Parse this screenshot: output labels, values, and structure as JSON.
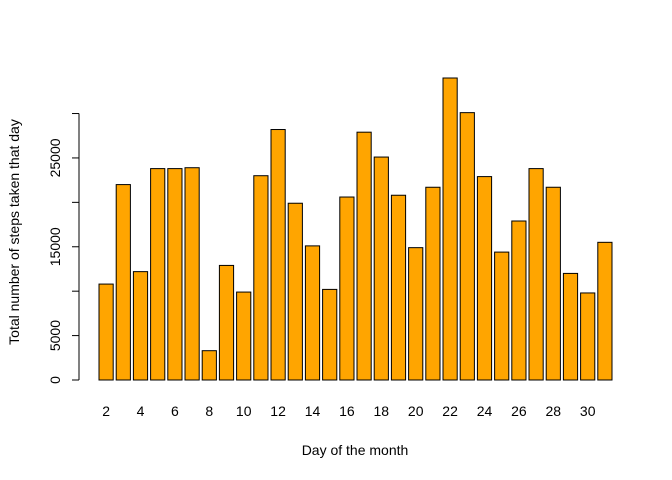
{
  "chart_data": {
    "type": "bar",
    "xlabel": "Day of the month",
    "ylabel": "Total number of steps taken that day",
    "bar_color": "#FFA500",
    "border_color": "#000000",
    "categories": [
      2,
      3,
      4,
      5,
      6,
      7,
      8,
      9,
      10,
      11,
      12,
      13,
      14,
      15,
      16,
      17,
      18,
      19,
      20,
      21,
      22,
      23,
      24,
      25,
      26,
      27,
      28,
      29,
      30,
      31
    ],
    "values": [
      10800,
      22000,
      12200,
      23800,
      23800,
      23900,
      3300,
      12900,
      9900,
      23000,
      28200,
      19900,
      15100,
      10200,
      20600,
      27900,
      25100,
      20800,
      14900,
      21700,
      34000,
      30100,
      22900,
      14400,
      17900,
      23800,
      21700,
      12000,
      9800,
      15500
    ],
    "x_tick_labels": [
      "2",
      "4",
      "6",
      "8",
      "10",
      "12",
      "14",
      "16",
      "18",
      "20",
      "22",
      "24",
      "26",
      "28",
      "30"
    ],
    "y_ticks": [
      0,
      5000,
      15000,
      25000
    ],
    "y_tick_labels": [
      "0",
      "5000",
      "15000",
      "25000"
    ],
    "y_minor_ticks": [
      10000,
      20000,
      30000
    ],
    "ylim": [
      0,
      34000
    ],
    "grid": false,
    "legend": "none"
  }
}
